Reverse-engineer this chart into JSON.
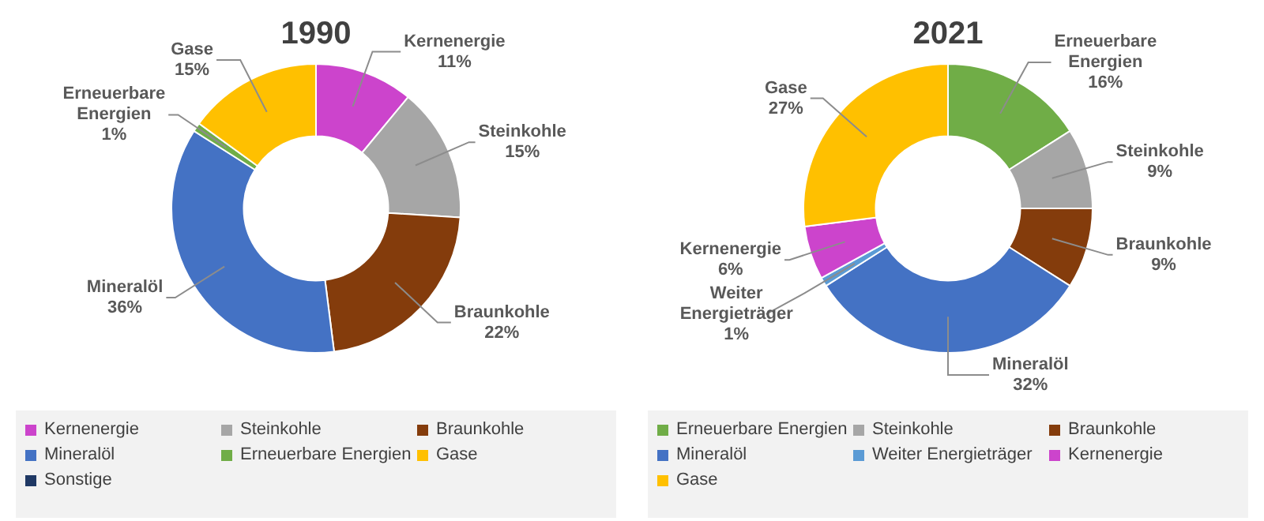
{
  "chart_data": [
    {
      "type": "donut",
      "title": "1990",
      "legend": "bottom",
      "categories": [
        "Kernenergie",
        "Steinkohle",
        "Braunkohle",
        "Mineralöl",
        "Erneuerbare Energien",
        "Gase",
        "Sonstige"
      ],
      "values": [
        11,
        15,
        22,
        36,
        1,
        15,
        0
      ],
      "value_labels": [
        "11%",
        "15%",
        "22%",
        "36%",
        "1%",
        "15%",
        null
      ],
      "colors": [
        "#cc44cc",
        "#a6a6a6",
        "#843c0c",
        "#4472c4",
        "#70ad47",
        "#ffc000",
        "#1f3864"
      ]
    },
    {
      "type": "donut",
      "title": "2021",
      "legend": "bottom",
      "categories": [
        "Erneuerbare Energien",
        "Steinkohle",
        "Braunkohle",
        "Mineralöl",
        "Weiter Energieträger",
        "Kernenergie",
        "Gase"
      ],
      "values": [
        16,
        9,
        9,
        32,
        1,
        6,
        27
      ],
      "value_labels": [
        "16%",
        "9%",
        "9%",
        "32%",
        "1%",
        "6%",
        "27%"
      ],
      "colors": [
        "#70ad47",
        "#a6a6a6",
        "#843c0c",
        "#4472c4",
        "#5b9bd5",
        "#cc44cc",
        "#ffc000"
      ]
    }
  ]
}
